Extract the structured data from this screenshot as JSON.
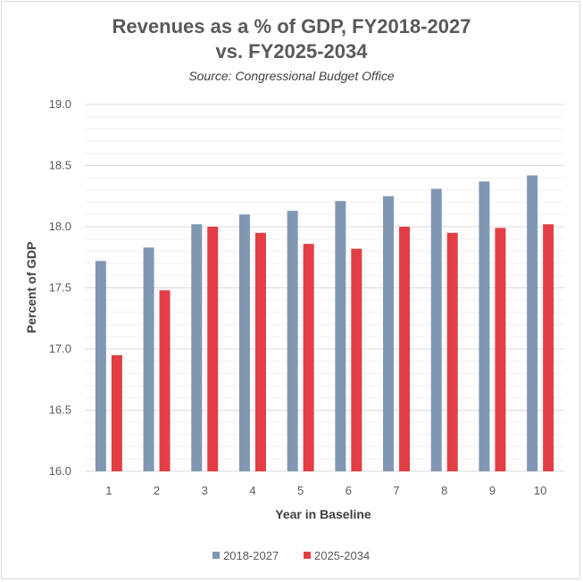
{
  "chart_data": {
    "type": "bar",
    "title_line1": "Revenues as a % of GDP, FY2018-2027",
    "title_line2": "vs. FY2025-2034",
    "subtitle": "Source: Congressional Budget Office",
    "xlabel": "Year in Baseline",
    "ylabel": "Percent of GDP",
    "ylim": [
      16.0,
      19.0
    ],
    "yticks": [
      "16.0",
      "16.5",
      "17.0",
      "17.5",
      "18.0",
      "18.5",
      "19.0"
    ],
    "minor_grid_step": 0.1,
    "grid": true,
    "legend_position": "bottom",
    "categories": [
      "1",
      "2",
      "3",
      "4",
      "5",
      "6",
      "7",
      "8",
      "9",
      "10"
    ],
    "series": [
      {
        "name": "2018-2027",
        "color": "#7f97b3",
        "values": [
          17.72,
          17.83,
          18.02,
          18.1,
          18.13,
          18.21,
          18.25,
          18.31,
          18.37,
          18.42
        ]
      },
      {
        "name": "2025-2034",
        "color": "#e33d46",
        "values": [
          16.95,
          17.48,
          18.0,
          17.95,
          17.86,
          17.82,
          18.0,
          17.95,
          17.99,
          18.02
        ]
      }
    ]
  }
}
